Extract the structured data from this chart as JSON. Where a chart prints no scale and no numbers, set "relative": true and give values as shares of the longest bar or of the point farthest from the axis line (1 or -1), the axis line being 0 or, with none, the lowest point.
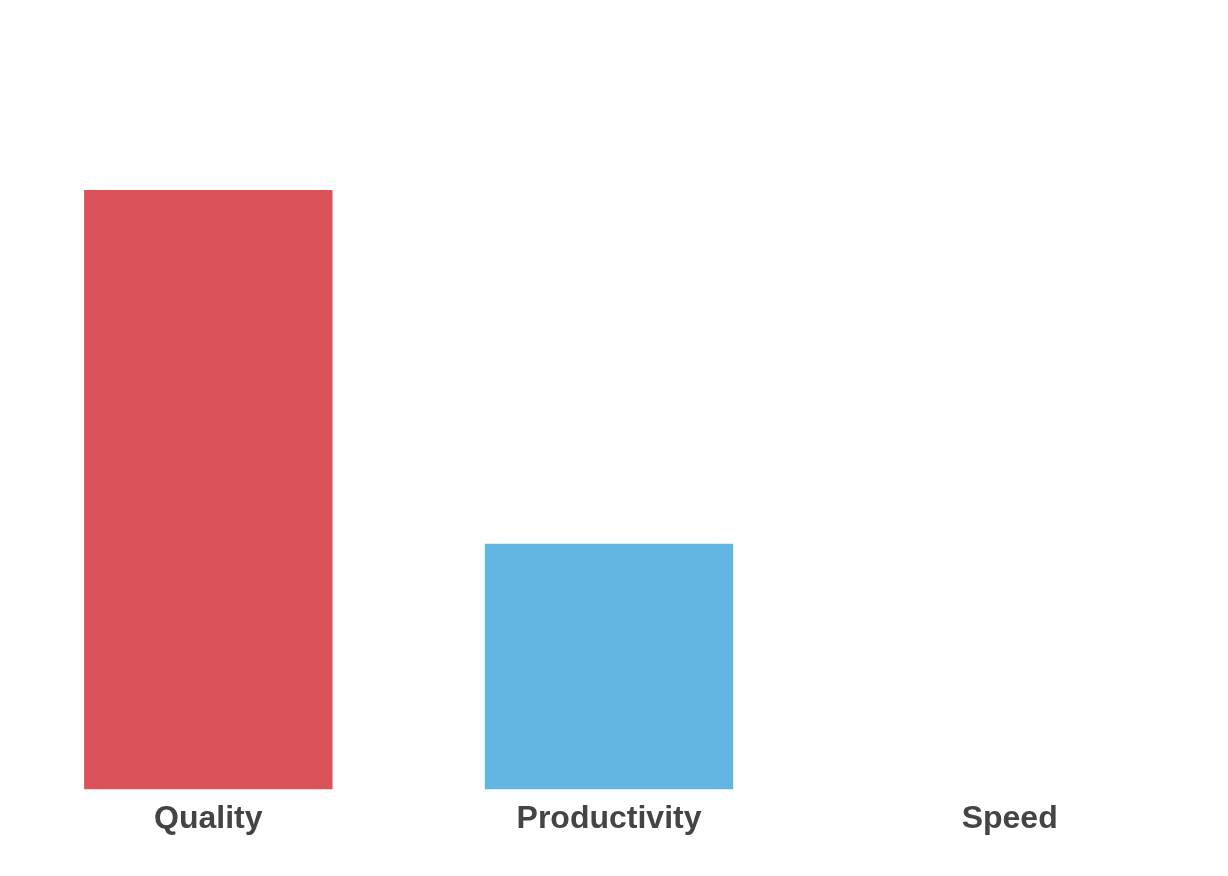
{
  "chart_data": {
    "type": "bar",
    "relative": true,
    "categories": [
      "Quality",
      "Productivity",
      "Speed"
    ],
    "values": [
      1,
      0.41,
      0
    ],
    "colors": [
      "#db535a",
      "#63b5e2",
      "#63b5e2"
    ],
    "grid": false,
    "legend": false
  }
}
